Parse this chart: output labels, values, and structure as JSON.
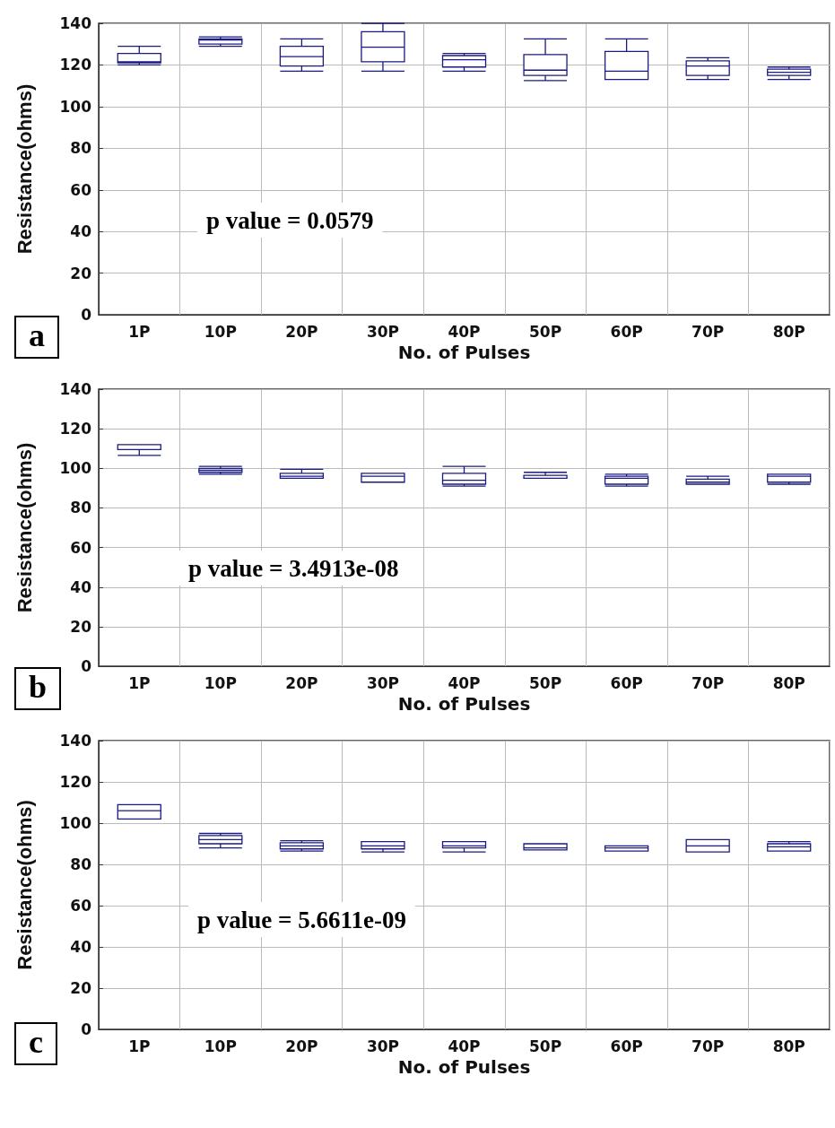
{
  "chart_data": [
    {
      "type": "box",
      "xlabel": "No. of Pulses",
      "ylabel": "Resistance(ohms)",
      "categories": [
        "1P",
        "10P",
        "20P",
        "30P",
        "40P",
        "50P",
        "60P",
        "70P",
        "80P"
      ],
      "color": "#1a1a80",
      "ylim": [
        0,
        140
      ],
      "yticks": [
        0,
        20,
        40,
        60,
        80,
        100,
        120,
        140
      ],
      "grid": true,
      "annotations": [
        "p value = 0.0579",
        "a"
      ],
      "boxes": [
        {
          "low": 120,
          "q1": 121,
          "median": 121.5,
          "q3": 125.5,
          "high": 129
        },
        {
          "low": 129,
          "q1": 130,
          "median": 132,
          "q3": 132.5,
          "high": 133.5
        },
        {
          "low": 117,
          "q1": 119.5,
          "median": 124,
          "q3": 129,
          "high": 132.5
        },
        {
          "low": 117,
          "q1": 121.5,
          "median": 128.5,
          "q3": 136,
          "high": 140
        },
        {
          "low": 117,
          "q1": 119,
          "median": 122.5,
          "q3": 124.5,
          "high": 125.5
        },
        {
          "low": 112.5,
          "q1": 115,
          "median": 117.5,
          "q3": 125,
          "high": 132.5
        },
        {
          "low": 113,
          "q1": 113,
          "median": 117,
          "q3": 126.5,
          "high": 132.5
        },
        {
          "low": 113,
          "q1": 115,
          "median": 119.5,
          "q3": 122,
          "high": 123.5
        },
        {
          "low": 113,
          "q1": 115,
          "median": 116.5,
          "q3": 118,
          "high": 119
        }
      ]
    },
    {
      "type": "box",
      "xlabel": "No. of Pulses",
      "ylabel": "Resistance(ohms)",
      "categories": [
        "1P",
        "10P",
        "20P",
        "30P",
        "40P",
        "50P",
        "60P",
        "70P",
        "80P"
      ],
      "color": "#1a1a80",
      "ylim": [
        0,
        140
      ],
      "yticks": [
        0,
        20,
        40,
        60,
        80,
        100,
        120,
        140
      ],
      "grid": true,
      "annotations": [
        "p value = 3.4913e-08",
        "b"
      ],
      "boxes": [
        {
          "low": 106.5,
          "q1": 109.5,
          "median": 112,
          "q3": 112,
          "high": 112
        },
        {
          "low": 97,
          "q1": 98,
          "median": 99,
          "q3": 100,
          "high": 101
        },
        {
          "low": 95,
          "q1": 95,
          "median": 96,
          "q3": 97.5,
          "high": 99.5
        },
        {
          "low": 93,
          "q1": 93,
          "median": 96,
          "q3": 97.5,
          "high": 97.5
        },
        {
          "low": 91,
          "q1": 92,
          "median": 94,
          "q3": 97.5,
          "high": 101
        },
        {
          "low": 95,
          "q1": 95,
          "median": 95,
          "q3": 96.5,
          "high": 98
        },
        {
          "low": 91,
          "q1": 92,
          "median": 95,
          "q3": 96,
          "high": 97
        },
        {
          "low": 92,
          "q1": 92,
          "median": 93,
          "q3": 94.5,
          "high": 96
        },
        {
          "low": 92,
          "q1": 93,
          "median": 96,
          "q3": 97,
          "high": 97
        }
      ]
    },
    {
      "type": "box",
      "xlabel": "No. of Pulses",
      "ylabel": "Resistance(ohms)",
      "categories": [
        "1P",
        "10P",
        "20P",
        "30P",
        "40P",
        "50P",
        "60P",
        "70P",
        "80P"
      ],
      "color": "#1a1a80",
      "ylim": [
        0,
        140
      ],
      "yticks": [
        0,
        20,
        40,
        60,
        80,
        100,
        120,
        140
      ],
      "grid": true,
      "annotations": [
        "p value = 5.6611e-09",
        "c"
      ],
      "boxes": [
        {
          "low": 102,
          "q1": 102,
          "median": 106,
          "q3": 109,
          "high": 109
        },
        {
          "low": 88,
          "q1": 90,
          "median": 92,
          "q3": 94,
          "high": 95
        },
        {
          "low": 86.5,
          "q1": 87.5,
          "median": 89,
          "q3": 90.5,
          "high": 91.5
        },
        {
          "low": 86,
          "q1": 87.5,
          "median": 89,
          "q3": 91,
          "high": 91
        },
        {
          "low": 86,
          "q1": 88,
          "median": 89,
          "q3": 91,
          "high": 91
        },
        {
          "low": 87,
          "q1": 87,
          "median": 88,
          "q3": 90,
          "high": 90
        },
        {
          "low": 86.5,
          "q1": 86.5,
          "median": 88,
          "q3": 89,
          "high": 89
        },
        {
          "low": 86,
          "q1": 86,
          "median": 89,
          "q3": 92,
          "high": 92
        },
        {
          "low": 86.5,
          "q1": 86.5,
          "median": 88.5,
          "q3": 90,
          "high": 91
        }
      ]
    }
  ]
}
